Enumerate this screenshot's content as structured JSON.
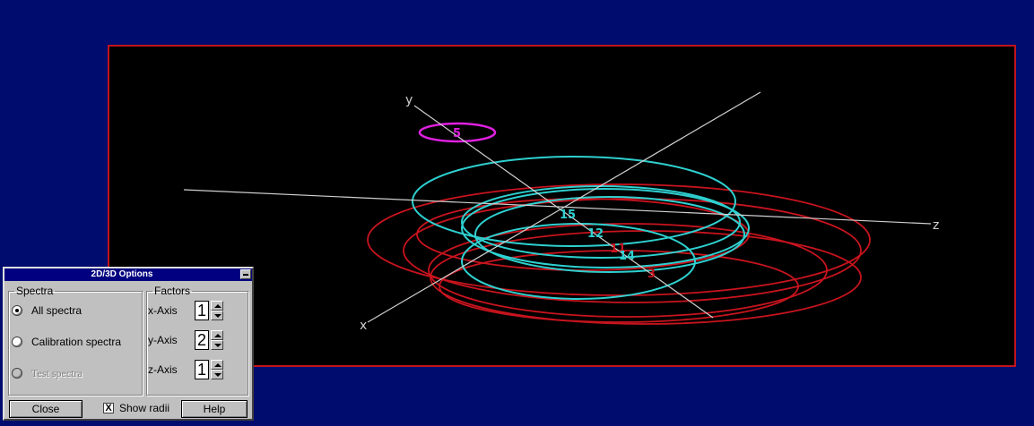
{
  "plot": {
    "axes": {
      "x": "x",
      "y": "y",
      "z": "z"
    },
    "markers": [
      "5",
      "15",
      "12",
      "11",
      "14",
      "3"
    ],
    "colors": {
      "background": "#000c6e",
      "frame": "#c0141e",
      "red": "#c8141e",
      "cyan": "#2fd0d0",
      "magenta": "#e020e0"
    }
  },
  "dialog": {
    "title": "2D/3D Options",
    "spectra_group": "Spectra",
    "options": [
      {
        "label": "All spectra",
        "checked": true,
        "disabled": false
      },
      {
        "label": "Calibration spectra",
        "checked": false,
        "disabled": false
      },
      {
        "label": "Test spectra",
        "checked": false,
        "disabled": true
      }
    ],
    "factors_group": "Factors",
    "factors": [
      {
        "label": "x-Axis",
        "value": "1"
      },
      {
        "label": "y-Axis",
        "value": "2"
      },
      {
        "label": "z-Axis",
        "value": "1"
      }
    ],
    "close_label": "Close",
    "show_radii_label": "Show radii",
    "show_radii_checked": "X",
    "help_label": "Help"
  }
}
